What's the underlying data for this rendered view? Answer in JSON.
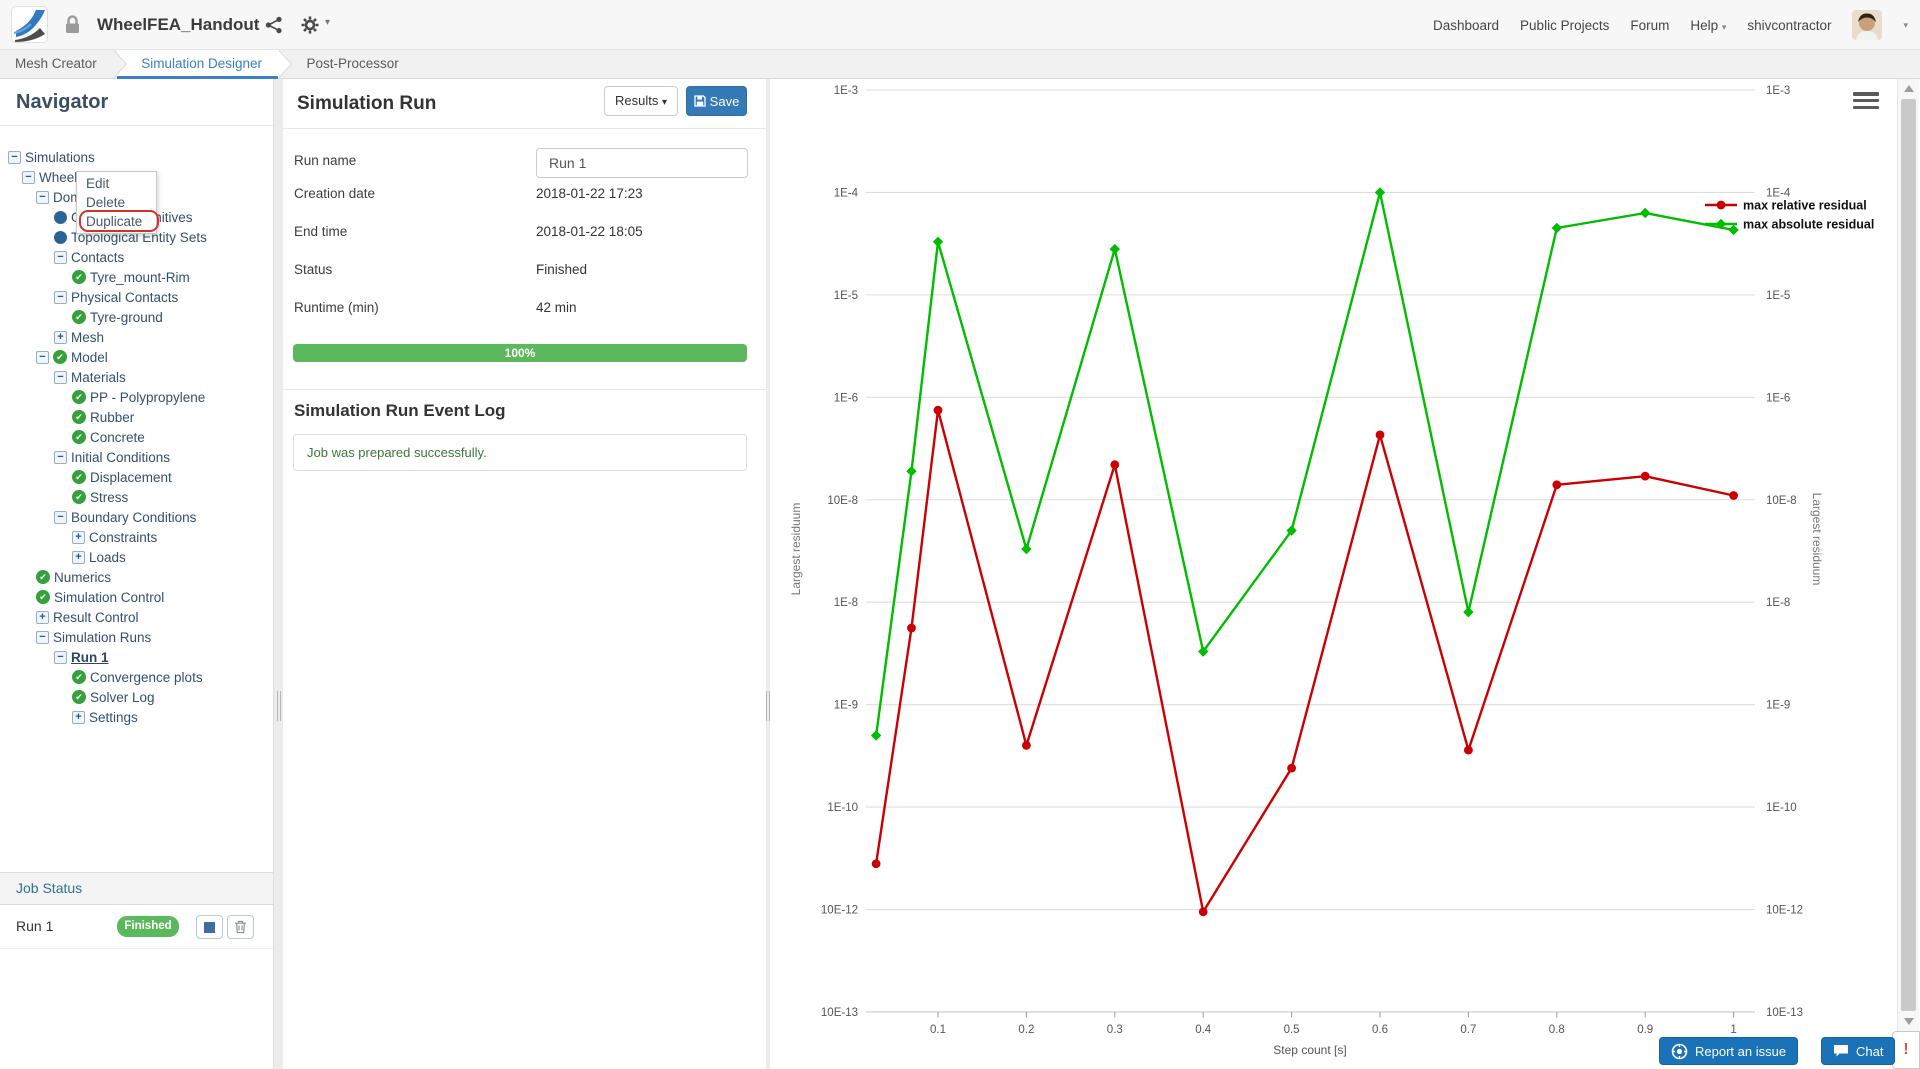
{
  "topbar": {
    "project_title": "WheelFEA_Handout",
    "nav": {
      "dashboard": "Dashboard",
      "public_projects": "Public Projects",
      "forum": "Forum",
      "help": "Help",
      "username": "shivcontractor"
    }
  },
  "tabs": {
    "mesh_creator": "Mesh Creator",
    "simulation_designer": "Simulation Designer",
    "post_processor": "Post-Processor",
    "active": "Simulation Designer"
  },
  "navigator": {
    "title": "Navigator",
    "tree": [
      {
        "label": "Simulations",
        "level": 0,
        "expander": "minus"
      },
      {
        "label": "Wheel_Meshing",
        "level": 1,
        "expander": "minus"
      },
      {
        "label": "Domain",
        "level": 2,
        "expander": "minus"
      },
      {
        "label": "Geometry Primitives",
        "level": 3,
        "icon": "dot"
      },
      {
        "label": "Topological Entity Sets",
        "level": 3,
        "icon": "dot"
      },
      {
        "label": "Contacts",
        "level": 3,
        "expander": "minus"
      },
      {
        "label": "Tyre_mount-Rim",
        "level": 4,
        "icon": "check"
      },
      {
        "label": "Physical Contacts",
        "level": 3,
        "expander": "minus"
      },
      {
        "label": "Tyre-ground",
        "level": 4,
        "icon": "check"
      },
      {
        "label": "Mesh",
        "level": 3,
        "expander": "plus"
      },
      {
        "label": "Model",
        "level": 2,
        "expander": "minus",
        "icon": "check"
      },
      {
        "label": "Materials",
        "level": 3,
        "expander": "minus"
      },
      {
        "label": "PP - Polypropylene",
        "level": 4,
        "icon": "check"
      },
      {
        "label": "Rubber",
        "level": 4,
        "icon": "check"
      },
      {
        "label": "Concrete",
        "level": 4,
        "icon": "check"
      },
      {
        "label": "Initial Conditions",
        "level": 3,
        "expander": "minus"
      },
      {
        "label": "Displacement",
        "level": 4,
        "icon": "check"
      },
      {
        "label": "Stress",
        "level": 4,
        "icon": "check"
      },
      {
        "label": "Boundary Conditions",
        "level": 3,
        "expander": "minus"
      },
      {
        "label": "Constraints",
        "level": 4,
        "expander": "plus"
      },
      {
        "label": "Loads",
        "level": 4,
        "expander": "plus"
      },
      {
        "label": "Numerics",
        "level": 2,
        "icon": "check"
      },
      {
        "label": "Simulation Control",
        "level": 2,
        "icon": "check"
      },
      {
        "label": "Result Control",
        "level": 2,
        "expander": "plus"
      },
      {
        "label": "Simulation Runs",
        "level": 2,
        "expander": "minus"
      },
      {
        "label": "Run 1",
        "level": 3,
        "expander": "minus",
        "selected": true
      },
      {
        "label": "Convergence plots",
        "level": 4,
        "icon": "check"
      },
      {
        "label": "Solver Log",
        "level": 4,
        "icon": "check"
      },
      {
        "label": "Settings",
        "level": 4,
        "expander": "plus"
      }
    ],
    "context_menu": {
      "items": [
        "Edit",
        "Delete",
        "Duplicate"
      ],
      "highlighted": "Duplicate"
    },
    "job_status": {
      "title": "Job Status",
      "run_name": "Run 1",
      "status_badge": "Finished"
    }
  },
  "run_panel": {
    "title": "Simulation Run",
    "results_button": "Results",
    "save_button": "Save",
    "fields": [
      {
        "label": "Run name",
        "value": "Run 1"
      },
      {
        "label": "Creation date",
        "value": "2018-01-22 17:23"
      },
      {
        "label": "End time",
        "value": "2018-01-22 18:05"
      },
      {
        "label": "Status",
        "value": "Finished"
      },
      {
        "label": "Runtime (min)",
        "value": "42 min"
      }
    ],
    "progress": "100%",
    "event_log_title": "Simulation Run Event Log",
    "event_log_message": "Job was prepared successfully."
  },
  "chart_data": {
    "type": "line",
    "title": "",
    "x": [
      0.03,
      0.07,
      0.1,
      0.2,
      0.3,
      0.4,
      0.5,
      0.6,
      0.7,
      0.8,
      0.9,
      1.0
    ],
    "series": [
      {
        "name": "max relative residual",
        "color": "#cc0000",
        "marker": "circle",
        "values": [
          2.8e-11,
          5.6e-09,
          7.5e-07,
          4e-10,
          2.2e-07,
          9.5e-12,
          2.4e-10,
          4.3e-07,
          3.6e-10,
          1.4e-07,
          1.7e-07,
          1.1e-07
        ]
      },
      {
        "name": "max absolute residual",
        "color": "#00bd00",
        "marker": "diamond",
        "values": [
          5e-10,
          1.9e-07,
          3.3e-05,
          3.3e-08,
          2.8e-05,
          3.3e-09,
          5e-08,
          0.0001,
          8e-09,
          4.5e-05,
          6.3e-05,
          4.3e-05
        ]
      }
    ],
    "xlabel": "Step count [s]",
    "ylabel_left": "Largest residuum",
    "ylabel_right": "Largest residuum",
    "y_scale": "log",
    "grid": true,
    "legend_position": "top-right",
    "x_tick_labels": [
      "0.1",
      "0.2",
      "0.3",
      "0.4",
      "0.5",
      "0.6",
      "0.7",
      "0.8",
      "0.9",
      "1"
    ],
    "y_tick_labels": [
      "1E-3",
      "1E-4",
      "1E-5",
      "1E-6",
      "10E-8",
      "1E-8",
      "1E-9",
      "1E-10",
      "10E-12",
      "10E-13"
    ],
    "ylim_top_label": "1E-3",
    "ylim_bottom_label": "10E-13"
  },
  "footer": {
    "report_button": "Report an issue",
    "chat_button": "Chat",
    "alert": "!"
  }
}
